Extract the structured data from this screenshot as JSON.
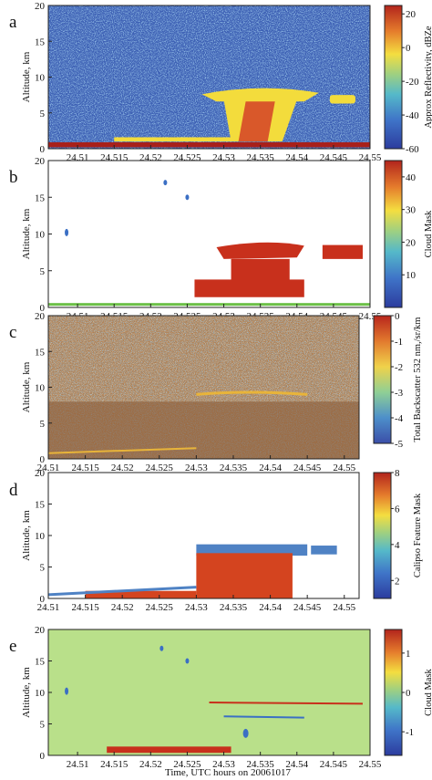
{
  "figure": {
    "xlabel": "Time, UTC hours on 20061017"
  },
  "chart_data": [
    {
      "panel": "a",
      "type": "heatmap",
      "ylabel": "Altitude, km",
      "yticks": [
        "0",
        "5",
        "10",
        "15",
        "20"
      ],
      "ylim": [
        0,
        20
      ],
      "xticks": [
        "24.51",
        "24.515",
        "24.52",
        "24.525",
        "24.53",
        "24.535",
        "24.54",
        "24.545",
        "24.55"
      ],
      "xlim": [
        24.506,
        24.55
      ],
      "colorbar": {
        "label": "Approx Reflectivity, dBZe",
        "ticks": [
          "20",
          "0",
          "-20",
          "-40",
          "-60"
        ],
        "range": [
          -60,
          25
        ]
      },
      "colors": {
        "background": "#3d60b4",
        "cloud": "#f3dc3c",
        "core": "#d9582a",
        "surface": "#a8201a"
      }
    },
    {
      "panel": "b",
      "type": "heatmap",
      "ylabel": "Altitude, km",
      "yticks": [
        "0",
        "5",
        "10",
        "15",
        "20"
      ],
      "ylim": [
        0,
        20
      ],
      "xticks": [
        "24.51",
        "24.515",
        "24.52",
        "24.525",
        "24.53",
        "24.535",
        "24.54",
        "24.545",
        "24.55"
      ],
      "xlim": [
        24.506,
        24.55
      ],
      "colorbar": {
        "label": "Cloud Mask",
        "ticks": [
          "40",
          "30",
          "20",
          "10"
        ],
        "range": [
          0,
          45
        ]
      },
      "colors": {
        "cloud": "#c8301c",
        "clear": "#ffffff",
        "edge": "#3b6fc4",
        "surface": "#6cc048"
      }
    },
    {
      "panel": "c",
      "type": "heatmap",
      "ylabel": "Altitude, km",
      "yticks": [
        "0",
        "5",
        "10",
        "15",
        "20"
      ],
      "ylim": [
        0,
        20
      ],
      "xticks": [
        "24.51",
        "24.515",
        "24.52",
        "24.525",
        "24.53",
        "24.535",
        "24.54",
        "24.545",
        "24.55"
      ],
      "xlim": [
        24.51,
        24.552
      ],
      "colorbar": {
        "label": "Total Backscatter 532 nm,/sr/km",
        "ticks": [
          "0",
          "-1",
          "-2",
          "-3",
          "-4",
          "-5"
        ],
        "range": [
          -5,
          0
        ]
      },
      "colors": {
        "noise": "#b07d4e",
        "noise_low": "#8c5e3c",
        "layer": "#e8b43a"
      }
    },
    {
      "panel": "d",
      "type": "heatmap",
      "ylabel": "Altitude, km",
      "yticks": [
        "0",
        "5",
        "10",
        "15",
        "20"
      ],
      "ylim": [
        0,
        20
      ],
      "xticks": [
        "24.51",
        "24.515",
        "24.52",
        "24.525",
        "24.53",
        "24.535",
        "24.54",
        "24.545",
        "24.55"
      ],
      "xlim": [
        24.51,
        24.552
      ],
      "colorbar": {
        "label": "Calipso Feature Mask",
        "ticks": [
          "8",
          "6",
          "4",
          "2"
        ],
        "range": [
          1,
          8
        ]
      },
      "colors": {
        "cloud": "#d4441f",
        "top": "#4f82c4",
        "clear": "#ffffff"
      }
    },
    {
      "panel": "e",
      "type": "heatmap",
      "ylabel": "Altitude, km",
      "yticks": [
        "0",
        "5",
        "10",
        "15",
        "20"
      ],
      "ylim": [
        0,
        20
      ],
      "xticks": [
        "24.51",
        "24.515",
        "24.52",
        "24.525",
        "24.53",
        "24.535",
        "24.54",
        "24.545",
        "24.55"
      ],
      "xlim": [
        24.506,
        24.55
      ],
      "colorbar": {
        "label": "Cloud Mask",
        "ticks": [
          "1",
          "0",
          "-1"
        ],
        "range": [
          -1.6,
          1.6
        ]
      },
      "colors": {
        "background": "#b9e08a",
        "positive": "#c8301c",
        "negative": "#3b6fc4"
      }
    }
  ]
}
